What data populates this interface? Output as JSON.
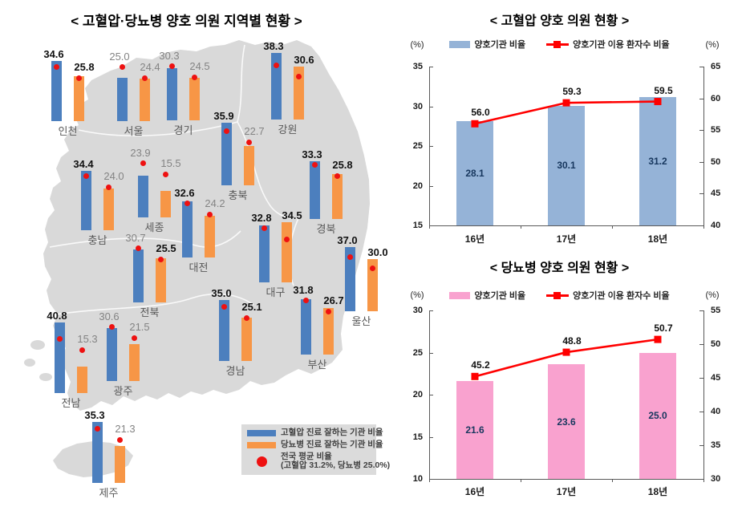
{
  "colors": {
    "map_fill": "#D9D9D9",
    "hypertension_bar": "#4C7FBE",
    "diabetes_bar": "#F79646",
    "average_dot": "#EE1111",
    "chart1_bar": "#95B3D7",
    "chart2_bar": "#F9A2CF",
    "trend_line": "#FF0000"
  },
  "map_panel": {
    "title": "< 고혈압·당뇨병 양호 의원 지역별 현황 >",
    "legend": {
      "hypertension_label": "고혈압 진료 잘하는 기관 비율",
      "diabetes_label": "당뇨병 진료 잘하는 기관 비율",
      "average_label_line1": "전국 평균 비율",
      "average_label_line2": "(고혈압 31.2%, 당뇨병 25.0%)"
    }
  },
  "chart_data": [
    {
      "type": "bar",
      "title": "< 고혈압·당뇨병 양호 의원 지역별 현황 >",
      "unit": "%",
      "series": [
        "고혈압 진료 잘하는 기관 비율",
        "당뇨병 진료 잘하는 기관 비율"
      ],
      "national_average": {
        "hypertension": 31.2,
        "diabetes": 25.0
      },
      "regions": [
        {
          "name": "인천",
          "hypertension": 34.6,
          "diabetes": 25.8
        },
        {
          "name": "서울",
          "hypertension": 25.0,
          "diabetes": 24.4
        },
        {
          "name": "경기",
          "hypertension": 30.3,
          "diabetes": 24.5
        },
        {
          "name": "강원",
          "hypertension": 38.3,
          "diabetes": 30.6
        },
        {
          "name": "충북",
          "hypertension": 35.9,
          "diabetes": 22.7
        },
        {
          "name": "세종",
          "hypertension": 23.9,
          "diabetes": 15.5
        },
        {
          "name": "충남",
          "hypertension": 34.4,
          "diabetes": 24.0
        },
        {
          "name": "대전",
          "hypertension": 32.6,
          "diabetes": 24.2
        },
        {
          "name": "경북",
          "hypertension": 33.3,
          "diabetes": 25.8
        },
        {
          "name": "대구",
          "hypertension": 32.8,
          "diabetes": 34.5
        },
        {
          "name": "울산",
          "hypertension": 37.0,
          "diabetes": 30.0
        },
        {
          "name": "전북",
          "hypertension": 30.7,
          "diabetes": 25.5
        },
        {
          "name": "전남",
          "hypertension": 40.8,
          "diabetes": 15.3
        },
        {
          "name": "광주",
          "hypertension": 30.6,
          "diabetes": 21.5
        },
        {
          "name": "경남",
          "hypertension": 35.0,
          "diabetes": 25.1
        },
        {
          "name": "부산",
          "hypertension": 31.8,
          "diabetes": 26.7
        },
        {
          "name": "제주",
          "hypertension": 35.3,
          "diabetes": 21.3
        }
      ]
    },
    {
      "type": "bar+line",
      "title": "< 고혈압 양호 의원 현황 >",
      "categories": [
        "16년",
        "17년",
        "18년"
      ],
      "bar_series": {
        "name": "양호기관 비율",
        "values": [
          28.1,
          30.1,
          31.2
        ]
      },
      "line_series": {
        "name": "양호기관 이용 환자수 비율",
        "values": [
          56.0,
          59.3,
          59.5
        ]
      },
      "left_axis": {
        "label": "(%)",
        "min": 15,
        "max": 35,
        "ticks": [
          35,
          30,
          25,
          20,
          15
        ]
      },
      "right_axis": {
        "label": "(%)",
        "min": 40,
        "max": 65,
        "ticks": [
          65,
          60,
          55,
          50,
          45,
          40
        ]
      },
      "legend_position": "top"
    },
    {
      "type": "bar+line",
      "title": "< 당뇨병 양호 의원 현황 >",
      "categories": [
        "16년",
        "17년",
        "18년"
      ],
      "bar_series": {
        "name": "양호기관 비율",
        "values": [
          21.6,
          23.6,
          25.0
        ]
      },
      "line_series": {
        "name": "양호기관 이용 환자수 비율",
        "values": [
          45.2,
          48.8,
          50.7
        ]
      },
      "left_axis": {
        "label": "(%)",
        "min": 10,
        "max": 30,
        "ticks": [
          30,
          25,
          20,
          15,
          10
        ]
      },
      "right_axis": {
        "label": "(%)",
        "min": 30,
        "max": 55,
        "ticks": [
          55,
          50,
          45,
          40,
          35,
          30
        ]
      },
      "legend_position": "top"
    }
  ]
}
